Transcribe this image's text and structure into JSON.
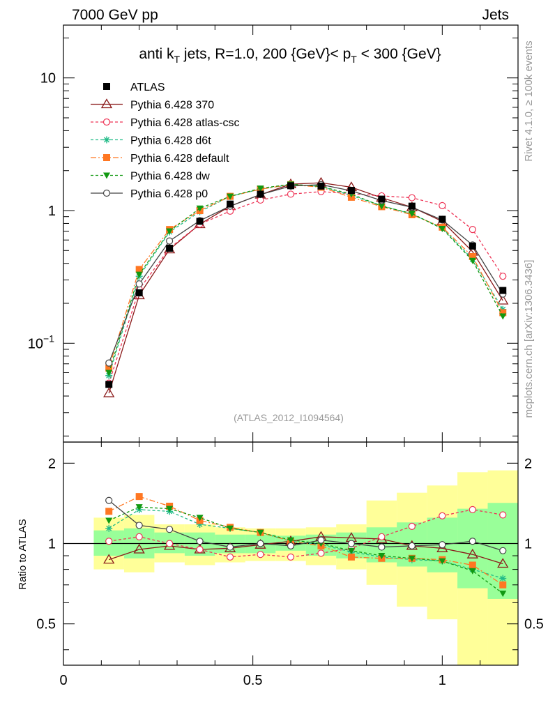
{
  "header": {
    "left": "7000 GeV pp",
    "right": "Jets"
  },
  "side_labels": {
    "rivet": "Rivet 4.1.0, ≥ 100k events",
    "mcplots": "mcplots.cern.ch [arXiv:1306.3436]"
  },
  "chart_data": {
    "type": "line",
    "title": "anti kT jets, R=1.0,  200 {GeV}< pT < 300 {GeV}",
    "title_parts": {
      "a": "anti k",
      "b": "T",
      "c": " jets, R=1.0,  200 {GeV}< p",
      "d": "T",
      "e": " < 300 {GeV}"
    },
    "watermark": "(ATLAS_2012_I1094564)",
    "xlim": [
      0,
      1.2
    ],
    "x_ticks": [
      "0",
      "0.5",
      "1"
    ],
    "main": {
      "yscale": "log",
      "ylim": [
        0.018,
        25
      ],
      "y_ticks": [
        "10",
        "1",
        "10−1"
      ]
    },
    "ratio": {
      "ylabel": "Ratio to ATLAS",
      "ylim": [
        0.35,
        2.4
      ],
      "y_ticks": [
        "2",
        "1",
        "0.5"
      ]
    },
    "x": [
      0.12,
      0.2,
      0.28,
      0.36,
      0.44,
      0.52,
      0.6,
      0.68,
      0.76,
      0.84,
      0.92,
      1.0,
      1.08,
      1.16
    ],
    "bin_edges": [
      0.08,
      0.16,
      0.24,
      0.32,
      0.4,
      0.48,
      0.56,
      0.64,
      0.72,
      0.8,
      0.88,
      0.96,
      1.04,
      1.12,
      1.2
    ],
    "band_inner": [
      [
        0.9,
        1.12
      ],
      [
        0.88,
        1.14
      ],
      [
        0.92,
        1.1
      ],
      [
        0.9,
        1.1
      ],
      [
        0.92,
        1.08
      ],
      [
        0.92,
        1.08
      ],
      [
        0.94,
        1.07
      ],
      [
        0.9,
        1.08
      ],
      [
        0.88,
        1.1
      ],
      [
        0.85,
        1.15
      ],
      [
        0.82,
        1.2
      ],
      [
        0.78,
        1.25
      ],
      [
        0.68,
        1.35
      ],
      [
        0.62,
        1.42
      ]
    ],
    "band_outer": [
      [
        0.8,
        1.25
      ],
      [
        0.78,
        1.28
      ],
      [
        0.85,
        1.18
      ],
      [
        0.83,
        1.18
      ],
      [
        0.85,
        1.15
      ],
      [
        0.86,
        1.14
      ],
      [
        0.86,
        1.14
      ],
      [
        0.83,
        1.15
      ],
      [
        0.8,
        1.18
      ],
      [
        0.7,
        1.45
      ],
      [
        0.58,
        1.55
      ],
      [
        0.52,
        1.65
      ],
      [
        0.35,
        1.85
      ],
      [
        0.35,
        1.88
      ]
    ],
    "series": [
      {
        "name": "ATLAS",
        "color": "#000000",
        "marker": "square",
        "dash": "",
        "values": [
          0.049,
          0.24,
          0.52,
          0.83,
          1.12,
          1.33,
          1.54,
          1.53,
          1.42,
          1.22,
          1.08,
          0.86,
          0.54,
          0.25
        ]
      },
      {
        "name": "Pythia 6.428 370",
        "color": "#8b1a1a",
        "marker": "triangle",
        "dash": "",
        "values": [
          0.042,
          0.23,
          0.51,
          0.79,
          1.08,
          1.32,
          1.58,
          1.62,
          1.5,
          1.25,
          1.06,
          0.83,
          0.49,
          0.21
        ]
      },
      {
        "name": "Pythia 6.428 atlas-csc",
        "color": "#ee3355",
        "marker": "circle-open",
        "dash": "4,3",
        "values": [
          0.05,
          0.255,
          0.52,
          0.79,
          0.99,
          1.2,
          1.33,
          1.39,
          1.34,
          1.29,
          1.25,
          1.09,
          0.72,
          0.32
        ]
      },
      {
        "name": "Pythia 6.428 d6t",
        "color": "#22bb88",
        "marker": "star",
        "dash": "4,3",
        "values": [
          0.057,
          0.32,
          0.69,
          0.98,
          1.28,
          1.45,
          1.57,
          1.52,
          1.3,
          1.09,
          0.94,
          0.74,
          0.43,
          0.18
        ]
      },
      {
        "name": "Pythia 6.428 default",
        "color": "#ff7722",
        "marker": "square",
        "dash": "8,3,2,3",
        "values": [
          0.065,
          0.36,
          0.72,
          1.0,
          1.28,
          1.45,
          1.57,
          1.5,
          1.26,
          1.07,
          0.93,
          0.75,
          0.45,
          0.17
        ]
      },
      {
        "name": "Pythia 6.428 dw",
        "color": "#119911",
        "marker": "triangle-down",
        "dash": "4,3",
        "values": [
          0.06,
          0.33,
          0.7,
          1.04,
          1.28,
          1.47,
          1.58,
          1.52,
          1.33,
          1.08,
          0.95,
          0.73,
          0.42,
          0.16
        ]
      },
      {
        "name": "Pythia 6.428 p0",
        "color": "#444444",
        "marker": "circle-open",
        "dash": "",
        "values": [
          0.071,
          0.28,
          0.59,
          0.84,
          1.08,
          1.32,
          1.53,
          1.57,
          1.41,
          1.19,
          1.06,
          0.85,
          0.55,
          0.235
        ]
      }
    ],
    "ratios": [
      [
        1,
        1,
        1,
        1,
        1,
        1,
        1,
        1,
        1,
        1,
        1,
        1,
        1,
        1
      ],
      [
        0.87,
        0.95,
        0.98,
        0.95,
        0.96,
        0.99,
        1.02,
        1.06,
        1.05,
        1.04,
        0.98,
        0.96,
        0.91,
        0.84
      ],
      [
        1.02,
        1.06,
        1.0,
        0.95,
        0.89,
        0.91,
        0.89,
        0.92,
        0.96,
        1.06,
        1.16,
        1.27,
        1.34,
        1.28
      ],
      [
        1.14,
        1.34,
        1.32,
        1.18,
        1.14,
        1.1,
        1.02,
        0.99,
        0.93,
        0.89,
        0.87,
        0.86,
        0.8,
        0.74
      ],
      [
        1.32,
        1.5,
        1.38,
        1.22,
        1.15,
        1.1,
        1.02,
        0.98,
        0.89,
        0.88,
        0.88,
        0.87,
        0.83,
        0.7
      ],
      [
        1.22,
        1.37,
        1.35,
        1.25,
        1.14,
        1.1,
        1.03,
        1.0,
        0.94,
        0.9,
        0.88,
        0.86,
        0.79,
        0.65
      ],
      [
        1.45,
        1.17,
        1.13,
        1.02,
        0.97,
        1.0,
        0.98,
        1.03,
        1.0,
        0.97,
        0.98,
        0.99,
        1.02,
        0.94
      ]
    ]
  }
}
